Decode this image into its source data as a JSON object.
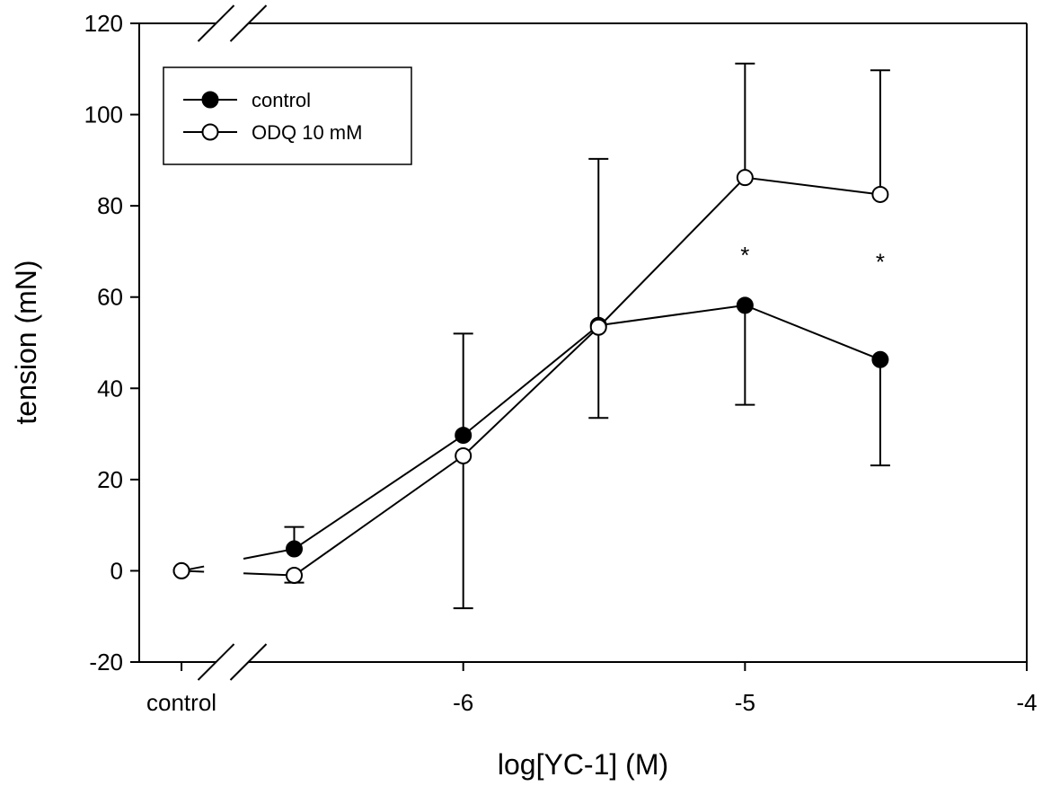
{
  "chart_data": {
    "type": "line",
    "xlabel": "log[YC-1] (M)",
    "ylabel": "tension (mN)",
    "x_axis": {
      "range": [
        -7.15,
        -4
      ],
      "ticks": [
        {
          "value": -7,
          "label": "control"
        },
        {
          "value": -6,
          "label": "-6"
        },
        {
          "value": -5,
          "label": "-5"
        },
        {
          "value": -4,
          "label": "-4"
        }
      ],
      "broken": true
    },
    "y_axis": {
      "range": [
        -20,
        120
      ],
      "ticks": [
        -20,
        0,
        20,
        40,
        60,
        80,
        100,
        120
      ]
    },
    "grid": false,
    "legend": {
      "position": "top-left",
      "boxed": true
    },
    "series": [
      {
        "name": "control",
        "marker": "filled-circle",
        "color": "#000000",
        "points": [
          {
            "x": -7,
            "y": 0
          },
          {
            "x": -6.6,
            "y": 4.8,
            "err_up": 4.8
          },
          {
            "x": -6,
            "y": 29.7,
            "err_up": 22.3
          },
          {
            "x": -5.52,
            "y": 53.8,
            "err_down": 20.3
          },
          {
            "x": -5,
            "y": 58.2,
            "err_down": 21.8
          },
          {
            "x": -4.52,
            "y": 46.3,
            "err_down": 23.2
          }
        ]
      },
      {
        "name": "ODQ 10 mM",
        "marker": "open-circle",
        "color": "#000000",
        "points": [
          {
            "x": -7,
            "y": 0
          },
          {
            "x": -6.6,
            "y": -1,
            "err_down": 1.6
          },
          {
            "x": -6,
            "y": 25.2,
            "err_down": 33.4
          },
          {
            "x": -5.52,
            "y": 53.4,
            "err_up": 36.9
          },
          {
            "x": -5,
            "y": 86.2,
            "err_up": 25
          },
          {
            "x": -4.52,
            "y": 82.5,
            "err_up": 27.2
          }
        ]
      }
    ],
    "annotations": [
      {
        "text": "*",
        "x": -5,
        "y": 71
      },
      {
        "text": "*",
        "x": -4.52,
        "y": 69.5
      }
    ]
  }
}
